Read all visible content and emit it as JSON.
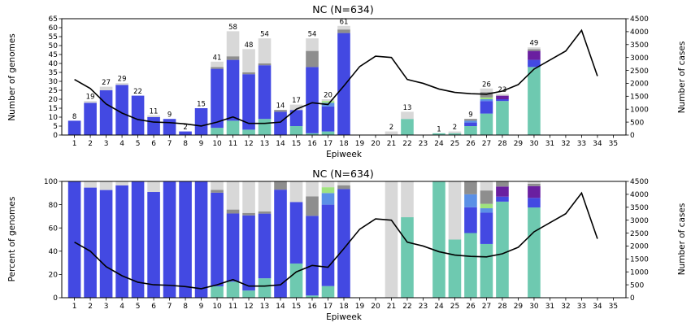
{
  "colors": {
    "blue": "#4349e2",
    "teal": "#6ec9b0",
    "lightgray": "#d8d8d8",
    "gray": "#8e8e8e",
    "purple": "#6a1fa0",
    "skyblue": "#5b90e6",
    "lightgreen": "#9fe37e",
    "line": "#000000"
  },
  "chart_data": [
    {
      "type": "bar",
      "stacked": true,
      "title": "NC (N=634)",
      "xlabel": "Epiweek",
      "ylabel": "Number of genomes",
      "y2label": "Number of cases",
      "ylim": [
        0,
        65
      ],
      "y2lim": [
        0,
        4500
      ],
      "yticks": [
        0,
        5,
        10,
        15,
        20,
        25,
        30,
        35,
        40,
        45,
        50,
        55,
        60,
        65
      ],
      "y2ticks": [
        0,
        500,
        1000,
        1500,
        2000,
        2500,
        3000,
        3500,
        4000,
        4500
      ],
      "categories": [
        1,
        2,
        3,
        4,
        5,
        6,
        7,
        8,
        9,
        10,
        11,
        12,
        13,
        14,
        15,
        16,
        17,
        18,
        19,
        20,
        21,
        22,
        23,
        24,
        25,
        26,
        27,
        28,
        29,
        30,
        31,
        32,
        33,
        34,
        35
      ],
      "bar_labels": [
        {
          "x": 1,
          "text": "8"
        },
        {
          "x": 2,
          "text": "19"
        },
        {
          "x": 3,
          "text": "27"
        },
        {
          "x": 4,
          "text": "29"
        },
        {
          "x": 5,
          "text": "22"
        },
        {
          "x": 6,
          "text": "11"
        },
        {
          "x": 7,
          "text": "9"
        },
        {
          "x": 8,
          "text": "2"
        },
        {
          "x": 9,
          "text": "15"
        },
        {
          "x": 10,
          "text": "41"
        },
        {
          "x": 11,
          "text": "58"
        },
        {
          "x": 12,
          "text": "48"
        },
        {
          "x": 13,
          "text": "54"
        },
        {
          "x": 14,
          "text": "14"
        },
        {
          "x": 15,
          "text": "17"
        },
        {
          "x": 16,
          "text": "54"
        },
        {
          "x": 17,
          "text": "20"
        },
        {
          "x": 18,
          "text": "61"
        },
        {
          "x": 21,
          "text": "2"
        },
        {
          "x": 22,
          "text": "13"
        },
        {
          "x": 24,
          "text": "1"
        },
        {
          "x": 25,
          "text": "2"
        },
        {
          "x": 26,
          "text": "9"
        },
        {
          "x": 27,
          "text": "26"
        },
        {
          "x": 28,
          "text": "23"
        },
        {
          "x": 30,
          "text": "49"
        }
      ],
      "bars": [
        {
          "x": 1,
          "segments": [
            [
              "blue",
              8
            ]
          ]
        },
        {
          "x": 2,
          "segments": [
            [
              "blue",
              18
            ],
            [
              "lightgray",
              1
            ]
          ]
        },
        {
          "x": 3,
          "segments": [
            [
              "blue",
              25
            ],
            [
              "lightgray",
              2
            ]
          ]
        },
        {
          "x": 4,
          "segments": [
            [
              "blue",
              28
            ],
            [
              "lightgray",
              1
            ]
          ]
        },
        {
          "x": 5,
          "segments": [
            [
              "blue",
              22
            ]
          ]
        },
        {
          "x": 6,
          "segments": [
            [
              "blue",
              10
            ],
            [
              "lightgray",
              1
            ]
          ]
        },
        {
          "x": 7,
          "segments": [
            [
              "blue",
              9
            ]
          ]
        },
        {
          "x": 8,
          "segments": [
            [
              "blue",
              2
            ]
          ]
        },
        {
          "x": 9,
          "segments": [
            [
              "blue",
              15
            ]
          ]
        },
        {
          "x": 10,
          "segments": [
            [
              "teal",
              4
            ],
            [
              "blue",
              33
            ],
            [
              "gray",
              1
            ],
            [
              "lightgray",
              3
            ]
          ]
        },
        {
          "x": 11,
          "segments": [
            [
              "teal",
              8
            ],
            [
              "blue",
              34
            ],
            [
              "gray",
              2
            ],
            [
              "lightgray",
              14
            ]
          ]
        },
        {
          "x": 12,
          "segments": [
            [
              "teal",
              3
            ],
            [
              "blue",
              31
            ],
            [
              "gray",
              1
            ],
            [
              "lightgray",
              13
            ]
          ]
        },
        {
          "x": 13,
          "segments": [
            [
              "teal",
              9
            ],
            [
              "blue",
              30
            ],
            [
              "gray",
              1
            ],
            [
              "lightgray",
              14
            ]
          ]
        },
        {
          "x": 14,
          "segments": [
            [
              "blue",
              13
            ],
            [
              "gray",
              1
            ]
          ]
        },
        {
          "x": 15,
          "segments": [
            [
              "teal",
              5
            ],
            [
              "blue",
              9
            ],
            [
              "lightgray",
              3
            ]
          ]
        },
        {
          "x": 16,
          "segments": [
            [
              "teal",
              1
            ],
            [
              "blue",
              37
            ],
            [
              "gray",
              9
            ],
            [
              "lightgray",
              7
            ]
          ]
        },
        {
          "x": 17,
          "segments": [
            [
              "teal",
              2
            ],
            [
              "blue",
              14
            ],
            [
              "skyblue",
              2
            ],
            [
              "lightgreen",
              1
            ],
            [
              "lightgray",
              1
            ]
          ]
        },
        {
          "x": 18,
          "segments": [
            [
              "blue",
              57
            ],
            [
              "gray",
              2
            ],
            [
              "lightgray",
              2
            ]
          ]
        },
        {
          "x": 21,
          "segments": [
            [
              "lightgray",
              2
            ]
          ]
        },
        {
          "x": 22,
          "segments": [
            [
              "teal",
              9
            ],
            [
              "lightgray",
              4
            ]
          ]
        },
        {
          "x": 24,
          "segments": [
            [
              "teal",
              1
            ]
          ]
        },
        {
          "x": 25,
          "segments": [
            [
              "teal",
              1
            ],
            [
              "lightgray",
              1
            ]
          ]
        },
        {
          "x": 26,
          "segments": [
            [
              "teal",
              5
            ],
            [
              "blue",
              2
            ],
            [
              "skyblue",
              1
            ],
            [
              "gray",
              1
            ]
          ]
        },
        {
          "x": 27,
          "segments": [
            [
              "teal",
              12
            ],
            [
              "blue",
              7
            ],
            [
              "skyblue",
              1
            ],
            [
              "lightgreen",
              1
            ],
            [
              "gray",
              3
            ],
            [
              "lightgray",
              2
            ]
          ]
        },
        {
          "x": 28,
          "segments": [
            [
              "teal",
              19
            ],
            [
              "blue",
              1
            ],
            [
              "purple",
              2
            ],
            [
              "lightgray",
              1
            ]
          ]
        },
        {
          "x": 30,
          "segments": [
            [
              "teal",
              38
            ],
            [
              "blue",
              4
            ],
            [
              "purple",
              5
            ],
            [
              "gray",
              1
            ],
            [
              "lightgray",
              1
            ]
          ]
        }
      ],
      "cases": {
        "x": [
          1,
          2,
          3,
          4,
          5,
          6,
          7,
          8,
          9,
          10,
          11,
          12,
          13,
          14,
          15,
          16,
          17,
          18,
          19,
          20,
          21,
          22,
          23,
          24,
          25,
          26,
          27,
          28,
          29,
          30,
          31,
          32,
          33,
          34
        ],
        "values": [
          2150,
          1800,
          1200,
          850,
          600,
          500,
          480,
          430,
          350,
          500,
          700,
          450,
          450,
          500,
          1000,
          1250,
          1180,
          1900,
          2650,
          3050,
          3000,
          2150,
          2000,
          1780,
          1650,
          1600,
          1580,
          1700,
          1950,
          2550,
          2900,
          3250,
          4050,
          2280
        ]
      }
    },
    {
      "type": "bar",
      "stacked": true,
      "title": "NC (N=634)",
      "xlabel": "Epiweek",
      "ylabel": "Percent of genomes",
      "y2label": "Number of cases",
      "ylim": [
        0,
        100
      ],
      "y2lim": [
        0,
        4500
      ],
      "yticks": [
        0,
        20,
        40,
        60,
        80,
        100
      ],
      "y2ticks": [
        0,
        500,
        1000,
        1500,
        2000,
        2500,
        3000,
        3500,
        4000,
        4500
      ],
      "categories": [
        1,
        2,
        3,
        4,
        5,
        6,
        7,
        8,
        9,
        10,
        11,
        12,
        13,
        14,
        15,
        16,
        17,
        18,
        19,
        20,
        21,
        22,
        23,
        24,
        25,
        26,
        27,
        28,
        29,
        30,
        31,
        32,
        33,
        34,
        35
      ],
      "bars": [
        {
          "x": 1,
          "segments": [
            [
              "blue",
              100
            ]
          ]
        },
        {
          "x": 2,
          "segments": [
            [
              "blue",
              94.7
            ],
            [
              "lightgray",
              5.3
            ]
          ]
        },
        {
          "x": 3,
          "segments": [
            [
              "blue",
              92.6
            ],
            [
              "lightgray",
              7.4
            ]
          ]
        },
        {
          "x": 4,
          "segments": [
            [
              "blue",
              96.6
            ],
            [
              "lightgray",
              3.4
            ]
          ]
        },
        {
          "x": 5,
          "segments": [
            [
              "blue",
              100
            ]
          ]
        },
        {
          "x": 6,
          "segments": [
            [
              "blue",
              90.9
            ],
            [
              "lightgray",
              9.1
            ]
          ]
        },
        {
          "x": 7,
          "segments": [
            [
              "blue",
              100
            ]
          ]
        },
        {
          "x": 8,
          "segments": [
            [
              "blue",
              100
            ]
          ]
        },
        {
          "x": 9,
          "segments": [
            [
              "blue",
              100
            ]
          ]
        },
        {
          "x": 10,
          "segments": [
            [
              "teal",
              9.8
            ],
            [
              "blue",
              80.5
            ],
            [
              "gray",
              2.4
            ],
            [
              "lightgray",
              7.3
            ]
          ]
        },
        {
          "x": 11,
          "segments": [
            [
              "teal",
              13.8
            ],
            [
              "blue",
              58.6
            ],
            [
              "gray",
              3.4
            ],
            [
              "lightgray",
              24.2
            ]
          ]
        },
        {
          "x": 12,
          "segments": [
            [
              "teal",
              6.2
            ],
            [
              "blue",
              64.6
            ],
            [
              "gray",
              2.1
            ],
            [
              "lightgray",
              27.1
            ]
          ]
        },
        {
          "x": 13,
          "segments": [
            [
              "teal",
              16.7
            ],
            [
              "blue",
              55.6
            ],
            [
              "gray",
              1.9
            ],
            [
              "lightgray",
              25.8
            ]
          ]
        },
        {
          "x": 14,
          "segments": [
            [
              "blue",
              92.9
            ],
            [
              "gray",
              7.1
            ]
          ]
        },
        {
          "x": 15,
          "segments": [
            [
              "teal",
              29.4
            ],
            [
              "blue",
              52.9
            ],
            [
              "lightgray",
              17.7
            ]
          ]
        },
        {
          "x": 16,
          "segments": [
            [
              "teal",
              1.9
            ],
            [
              "blue",
              68.5
            ],
            [
              "gray",
              16.7
            ],
            [
              "lightgray",
              12.9
            ]
          ]
        },
        {
          "x": 17,
          "segments": [
            [
              "teal",
              10
            ],
            [
              "blue",
              70
            ],
            [
              "skyblue",
              10
            ],
            [
              "lightgreen",
              5
            ],
            [
              "lightgray",
              5
            ]
          ]
        },
        {
          "x": 18,
          "segments": [
            [
              "blue",
              93.4
            ],
            [
              "gray",
              3.3
            ],
            [
              "lightgray",
              3.3
            ]
          ]
        },
        {
          "x": 21,
          "segments": [
            [
              "lightgray",
              100
            ]
          ]
        },
        {
          "x": 22,
          "segments": [
            [
              "teal",
              69.2
            ],
            [
              "lightgray",
              30.8
            ]
          ]
        },
        {
          "x": 24,
          "segments": [
            [
              "teal",
              100
            ]
          ]
        },
        {
          "x": 25,
          "segments": [
            [
              "teal",
              50
            ],
            [
              "lightgray",
              50
            ]
          ]
        },
        {
          "x": 26,
          "segments": [
            [
              "teal",
              55.6
            ],
            [
              "blue",
              22.2
            ],
            [
              "skyblue",
              11.1
            ],
            [
              "gray",
              11.1
            ]
          ]
        },
        {
          "x": 27,
          "segments": [
            [
              "teal",
              46.2
            ],
            [
              "blue",
              26.9
            ],
            [
              "skyblue",
              3.8
            ],
            [
              "lightgreen",
              3.8
            ],
            [
              "gray",
              11.5
            ],
            [
              "lightgray",
              7.8
            ]
          ]
        },
        {
          "x": 28,
          "segments": [
            [
              "teal",
              82.6
            ],
            [
              "blue",
              4.3
            ],
            [
              "purple",
              8.7
            ],
            [
              "gray",
              4.4
            ]
          ]
        },
        {
          "x": 30,
          "segments": [
            [
              "teal",
              77.6
            ],
            [
              "blue",
              8.2
            ],
            [
              "purple",
              10.2
            ],
            [
              "gray",
              2
            ],
            [
              "lightgray",
              2
            ]
          ]
        }
      ],
      "cases": {
        "x": [
          1,
          2,
          3,
          4,
          5,
          6,
          7,
          8,
          9,
          10,
          11,
          12,
          13,
          14,
          15,
          16,
          17,
          18,
          19,
          20,
          21,
          22,
          23,
          24,
          25,
          26,
          27,
          28,
          29,
          30,
          31,
          32,
          33,
          34
        ],
        "values": [
          2150,
          1800,
          1200,
          850,
          600,
          500,
          480,
          430,
          350,
          500,
          700,
          450,
          450,
          500,
          1000,
          1250,
          1180,
          1900,
          2650,
          3050,
          3000,
          2150,
          2000,
          1780,
          1650,
          1600,
          1580,
          1700,
          1950,
          2550,
          2900,
          3250,
          4050,
          2280
        ]
      }
    }
  ]
}
